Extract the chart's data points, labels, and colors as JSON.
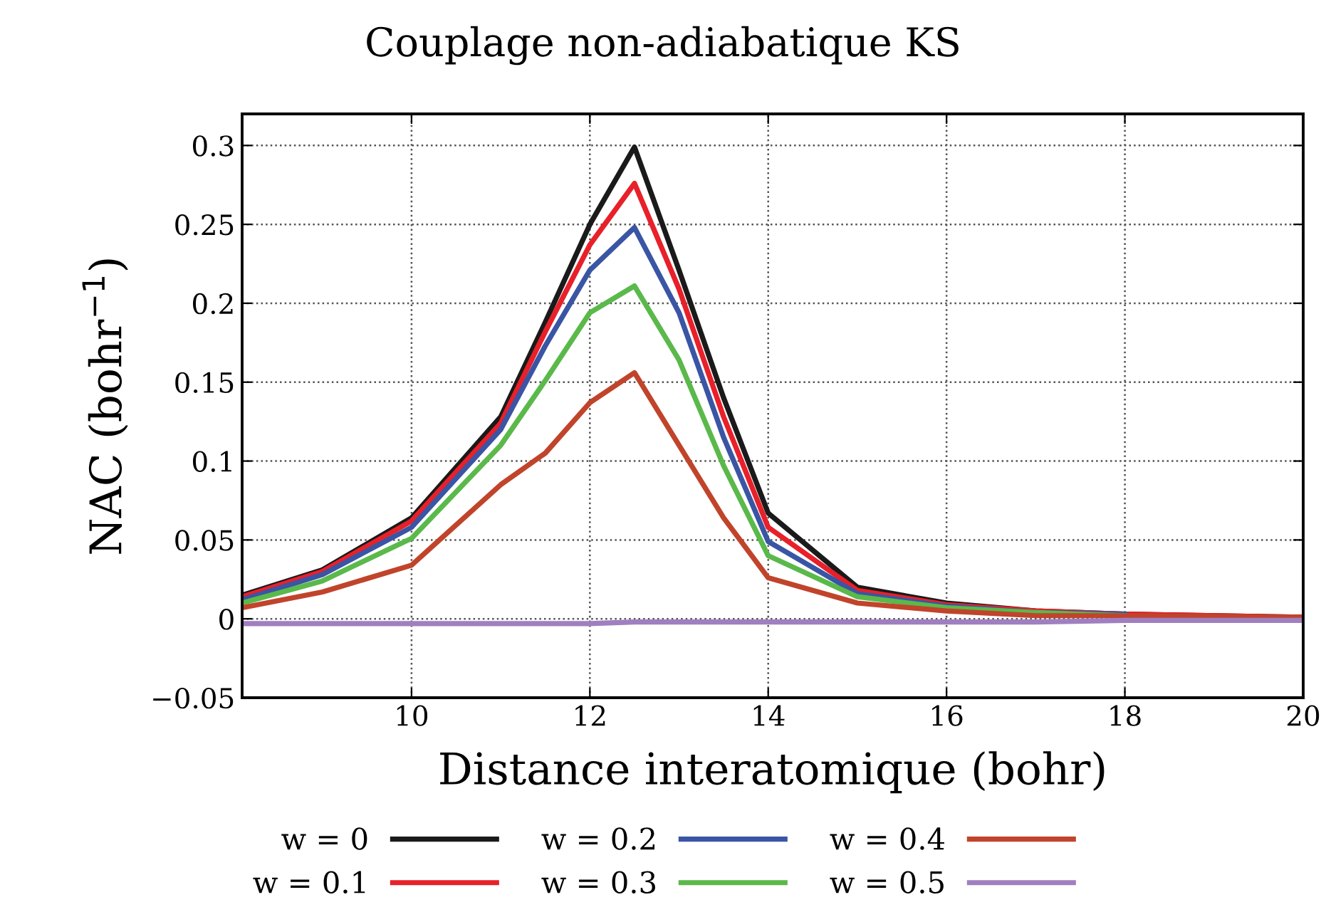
{
  "chart_data": {
    "type": "line",
    "title": "Couplage non-adiabatique KS",
    "xlabel": "Distance interatomique (bohr)",
    "ylabel": "NAC (bohr$^{−1}$)",
    "xlim": [
      8.1,
      20
    ],
    "xticks": [
      10,
      12,
      14,
      16,
      18,
      20
    ],
    "ylim": [
      -0.05,
      0.32
    ],
    "yticks": [
      {
        "value": -0.05,
        "label": "−0.05"
      },
      0,
      0.05,
      0.1,
      0.15,
      0.2,
      0.25,
      0.3
    ],
    "grid": true,
    "legend": "bottom",
    "line_style": "solid",
    "marker": "none",
    "x": [
      8.1,
      9,
      10,
      11,
      11.5,
      12,
      12.5,
      13,
      13.5,
      14,
      15,
      16,
      17,
      18,
      20
    ],
    "series": [
      {
        "name": "w = 0",
        "color": "#1a1a1a",
        "values": [
          0.015,
          0.031,
          0.064,
          0.128,
          0.188,
          0.25,
          0.299,
          0.221,
          0.14,
          0.067,
          0.02,
          0.01,
          0.005,
          0.003,
          0.001
        ]
      },
      {
        "name": "w = 0.1",
        "color": "#e8202a",
        "values": [
          0.014,
          0.03,
          0.062,
          0.124,
          0.182,
          0.237,
          0.276,
          0.209,
          0.128,
          0.058,
          0.018,
          0.009,
          0.005,
          0.003,
          0.001
        ]
      },
      {
        "name": "w = 0.2",
        "color": "#3a55a4",
        "values": [
          0.012,
          0.028,
          0.058,
          0.12,
          0.173,
          0.221,
          0.248,
          0.194,
          0.115,
          0.049,
          0.016,
          0.008,
          0.004,
          0.003,
          null
        ]
      },
      {
        "name": "w = 0.3",
        "color": "#5ab94a",
        "values": [
          0.01,
          0.024,
          0.051,
          0.11,
          0.151,
          0.194,
          0.211,
          0.164,
          0.097,
          0.04,
          0.014,
          0.007,
          0.004,
          0.002,
          null
        ]
      },
      {
        "name": "w = 0.4",
        "color": "#c0442b",
        "values": [
          0.007,
          0.017,
          0.034,
          0.085,
          0.105,
          0.137,
          0.156,
          0.11,
          0.064,
          0.026,
          0.01,
          0.005,
          0.002,
          0.002,
          0.001
        ]
      },
      {
        "name": "w = 0.5",
        "color": "#a07fc0",
        "values": [
          -0.003,
          -0.003,
          -0.003,
          -0.003,
          -0.003,
          -0.003,
          -0.002,
          -0.002,
          -0.002,
          -0.002,
          -0.002,
          -0.002,
          -0.002,
          -0.001,
          -0.001
        ]
      }
    ]
  }
}
